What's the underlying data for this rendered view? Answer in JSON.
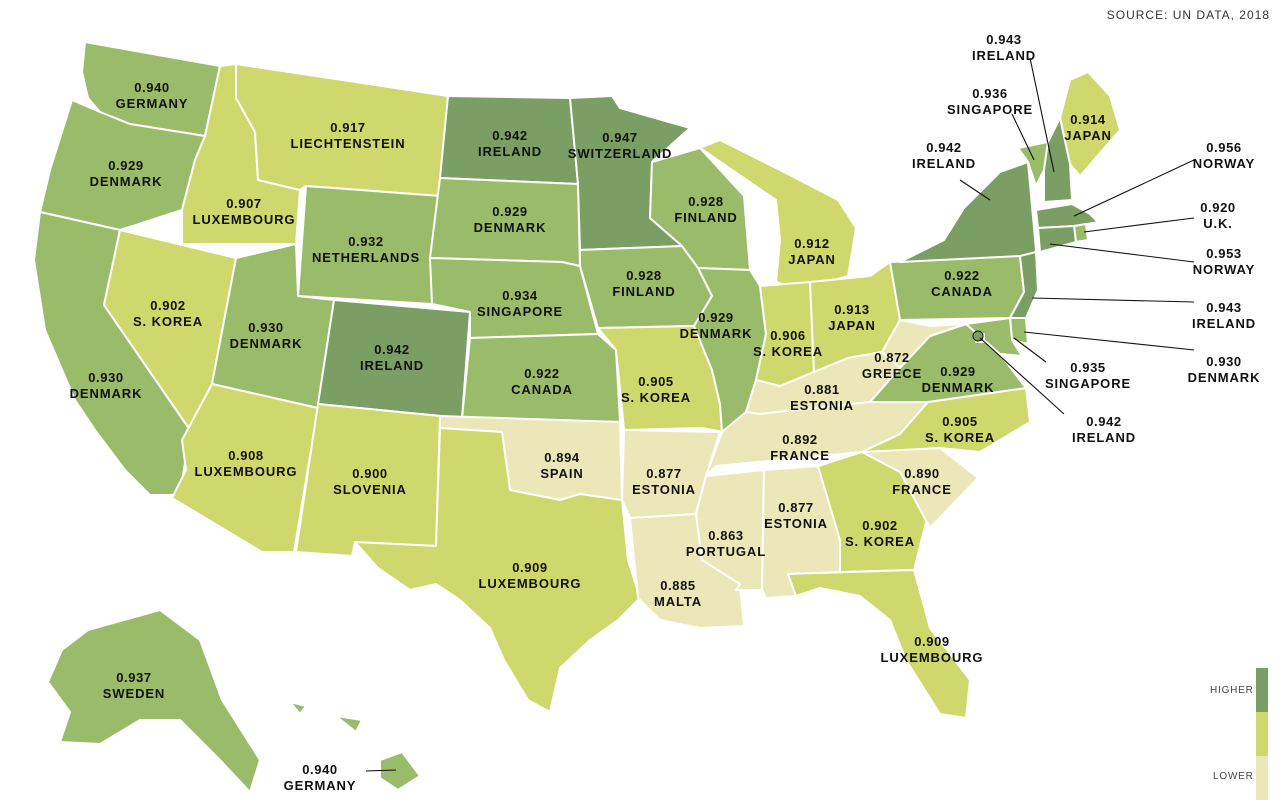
{
  "source": "SOURCE: UN DATA, 2018",
  "legend": {
    "higher": "HIGHER",
    "lower": "LOWER",
    "colors": [
      "#7a9e63",
      "#cfd86c",
      "#ece7b8"
    ]
  },
  "colors": {
    "dark": "#7a9e63",
    "medium": "#9abc6a",
    "light": "#cfd86c",
    "pale": "#ece7b8"
  },
  "states": [
    {
      "id": "WA",
      "value": "0.940",
      "country": "GERMANY"
    },
    {
      "id": "OR",
      "value": "0.929",
      "country": "DENMARK"
    },
    {
      "id": "CA",
      "value": "0.930",
      "country": "DENMARK"
    },
    {
      "id": "ID",
      "value": "0.907",
      "country": "LUXEMBOURG"
    },
    {
      "id": "NV",
      "value": "0.902",
      "country": "S. KOREA"
    },
    {
      "id": "MT",
      "value": "0.917",
      "country": "LIECHTENSTEIN"
    },
    {
      "id": "WY",
      "value": "0.932",
      "country": "NETHERLANDS"
    },
    {
      "id": "UT",
      "value": "0.930",
      "country": "DENMARK"
    },
    {
      "id": "AZ",
      "value": "0.908",
      "country": "LUXEMBOURG"
    },
    {
      "id": "CO",
      "value": "0.942",
      "country": "IRELAND"
    },
    {
      "id": "NM",
      "value": "0.900",
      "country": "SLOVENIA"
    },
    {
      "id": "ND",
      "value": "0.942",
      "country": "IRELAND"
    },
    {
      "id": "SD",
      "value": "0.929",
      "country": "DENMARK"
    },
    {
      "id": "NE",
      "value": "0.934",
      "country": "SINGAPORE"
    },
    {
      "id": "KS",
      "value": "0.922",
      "country": "CANADA"
    },
    {
      "id": "OK",
      "value": "0.894",
      "country": "SPAIN"
    },
    {
      "id": "TX",
      "value": "0.909",
      "country": "LUXEMBOURG"
    },
    {
      "id": "MN",
      "value": "0.947",
      "country": "SWITZERLAND"
    },
    {
      "id": "IA",
      "value": "0.928",
      "country": "FINLAND"
    },
    {
      "id": "MO",
      "value": "0.905",
      "country": "S. KOREA"
    },
    {
      "id": "AR",
      "value": "0.877",
      "country": "ESTONIA"
    },
    {
      "id": "LA",
      "value": "0.885",
      "country": "MALTA"
    },
    {
      "id": "WI",
      "value": "0.928",
      "country": "FINLAND"
    },
    {
      "id": "IL",
      "value": "0.929",
      "country": "DENMARK"
    },
    {
      "id": "MI",
      "value": "0.912",
      "country": "JAPAN"
    },
    {
      "id": "IN",
      "value": "0.906",
      "country": "S. KOREA"
    },
    {
      "id": "OH",
      "value": "0.913",
      "country": "JAPAN"
    },
    {
      "id": "KY",
      "value": "0.881",
      "country": "ESTONIA"
    },
    {
      "id": "TN",
      "value": "0.892",
      "country": "FRANCE"
    },
    {
      "id": "MS",
      "value": "0.863",
      "country": "PORTUGAL"
    },
    {
      "id": "AL",
      "value": "0.877",
      "country": "ESTONIA"
    },
    {
      "id": "GA",
      "value": "0.902",
      "country": "S. KOREA"
    },
    {
      "id": "FL",
      "value": "0.909",
      "country": "LUXEMBOURG"
    },
    {
      "id": "SC",
      "value": "0.890",
      "country": "FRANCE"
    },
    {
      "id": "NC",
      "value": "0.905",
      "country": "S. KOREA"
    },
    {
      "id": "VA",
      "value": "0.929",
      "country": "DENMARK"
    },
    {
      "id": "WV",
      "value": "0.872",
      "country": "GREECE"
    },
    {
      "id": "PA",
      "value": "0.922",
      "country": "CANADA"
    },
    {
      "id": "NY",
      "value": "0.942",
      "country": "IRELAND"
    },
    {
      "id": "ME",
      "value": "0.914",
      "country": "JAPAN"
    },
    {
      "id": "AK",
      "value": "0.937",
      "country": "SWEDEN"
    },
    {
      "id": "HI",
      "value": "0.940",
      "country": "GERMANY"
    },
    {
      "id": "VT",
      "value": "0.936",
      "country": "SINGAPORE"
    },
    {
      "id": "NH",
      "value": "0.943",
      "country": "IRELAND"
    },
    {
      "id": "MA",
      "value": "0.956",
      "country": "NORWAY"
    },
    {
      "id": "RI",
      "value": "0.920",
      "country": "U.K."
    },
    {
      "id": "CT",
      "value": "0.953",
      "country": "NORWAY"
    },
    {
      "id": "NJ",
      "value": "0.943",
      "country": "IRELAND"
    },
    {
      "id": "DE",
      "value": "0.930",
      "country": "DENMARK"
    },
    {
      "id": "MD",
      "value": "0.935",
      "country": "SINGAPORE"
    },
    {
      "id": "DC",
      "value": "0.942",
      "country": "IRELAND"
    }
  ]
}
